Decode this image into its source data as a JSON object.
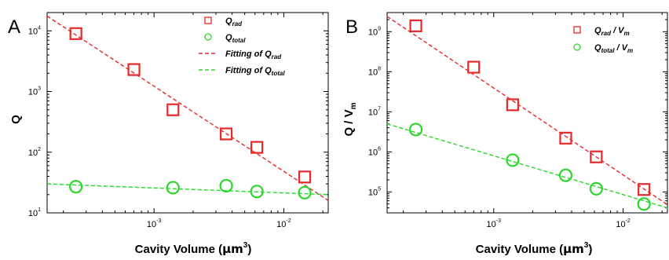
{
  "chart_data": [
    {
      "panel": "A",
      "type": "scatter",
      "xlabel": "Cavity Volume (μm³)",
      "ylabel": "Q",
      "xscale": "log",
      "yscale": "log",
      "xlim": [
        0.00015,
        0.022
      ],
      "ylim": [
        10,
        20000
      ],
      "x_ticks": [
        {
          "base": "10",
          "exp": "-3",
          "value": 0.001
        },
        {
          "base": "10",
          "exp": "-2",
          "value": 0.01
        }
      ],
      "y_ticks": [
        {
          "base": "10",
          "exp": "1",
          "value": 10
        },
        {
          "base": "10",
          "exp": "2",
          "value": 100
        },
        {
          "base": "10",
          "exp": "3",
          "value": 1000
        },
        {
          "base": "10",
          "exp": "4",
          "value": 10000
        }
      ],
      "legend_position": "top-right",
      "series": [
        {
          "name": "Qrad",
          "name_parts": {
            "base": "Q",
            "sub": "rad",
            "suffix": ""
          },
          "kind": "markers",
          "marker": "square",
          "color": "#e8282a",
          "x": [
            0.00025,
            0.0007,
            0.0014,
            0.0036,
            0.0062,
            0.0145
          ],
          "y": [
            9000,
            2300,
            500,
            200,
            120,
            39
          ]
        },
        {
          "name": "Qtotal",
          "name_parts": {
            "base": "Q",
            "sub": "total",
            "suffix": ""
          },
          "kind": "markers",
          "marker": "circle",
          "color": "#2ad62a",
          "x": [
            0.00025,
            0.0014,
            0.0036,
            0.0062,
            0.0145
          ],
          "y": [
            27,
            26,
            28,
            22.5,
            21.5
          ]
        },
        {
          "name": "Fitting of Qrad",
          "name_parts": {
            "base": "Fitting of Q",
            "sub": "rad",
            "suffix": ""
          },
          "kind": "fit",
          "color": "#e8282a",
          "x": [
            0.00015,
            0.022
          ],
          "y": [
            17500,
            16
          ]
        },
        {
          "name": "Fitting of Qtotal",
          "name_parts": {
            "base": "Fitting of Q",
            "sub": "total",
            "suffix": ""
          },
          "kind": "fit",
          "color": "#2ad62a",
          "x": [
            0.00015,
            0.022
          ],
          "y": [
            30,
            20
          ]
        }
      ]
    },
    {
      "panel": "B",
      "type": "scatter",
      "xlabel": "Cavity Volume (μm³)",
      "ylabel": "Q / Vm",
      "xscale": "log",
      "yscale": "log",
      "xlim": [
        0.00015,
        0.022
      ],
      "ylim": [
        30000,
        3000000000
      ],
      "x_ticks": [
        {
          "base": "10",
          "exp": "-3",
          "value": 0.001
        },
        {
          "base": "10",
          "exp": "-2",
          "value": 0.01
        }
      ],
      "y_ticks": [
        {
          "base": "10",
          "exp": "5",
          "value": 100000
        },
        {
          "base": "10",
          "exp": "6",
          "value": 1000000
        },
        {
          "base": "10",
          "exp": "7",
          "value": 10000000
        },
        {
          "base": "10",
          "exp": "8",
          "value": 100000000
        },
        {
          "base": "10",
          "exp": "9",
          "value": 1000000000
        }
      ],
      "legend_position": "top-right",
      "series": [
        {
          "name": "Qrad / Vm",
          "name_parts": {
            "base": "Q",
            "sub": "rad",
            "suffix": " / V",
            "suffix_sub": "m"
          },
          "kind": "markers",
          "marker": "square",
          "color": "#e8282a",
          "x": [
            0.00025,
            0.0007,
            0.0014,
            0.0036,
            0.0062,
            0.0145
          ],
          "y": [
            1400000000,
            130000000,
            15000000,
            2200000,
            750000,
            115000
          ]
        },
        {
          "name": "Qtotal / Vm",
          "name_parts": {
            "base": "Q",
            "sub": "total",
            "suffix": " / V",
            "suffix_sub": "m"
          },
          "kind": "markers",
          "marker": "circle",
          "color": "#2ad62a",
          "x": [
            0.00025,
            0.0014,
            0.0036,
            0.0062,
            0.0145
          ],
          "y": [
            3600000,
            620000,
            260000,
            120000,
            50000
          ]
        },
        {
          "name": "fit Qrad/Vm",
          "kind": "fit",
          "color": "#e8282a",
          "legend": false,
          "x": [
            0.00015,
            0.022
          ],
          "y": [
            2400000000,
            48000
          ]
        },
        {
          "name": "fit Qtotal/Vm",
          "kind": "fit",
          "color": "#2ad62a",
          "legend": false,
          "x": [
            0.00015,
            0.022
          ],
          "y": [
            5000000,
            40000
          ]
        }
      ]
    }
  ],
  "labels": {
    "panelA": "A",
    "panelB": "B",
    "xlabel_main": "Cavity Volume (",
    "xlabel_mu": "μm",
    "xlabel_exp": "3",
    "xlabel_close": ")",
    "ylabelA": "Q",
    "ylabelB_main": "Q / V",
    "ylabelB_sub": "m"
  }
}
